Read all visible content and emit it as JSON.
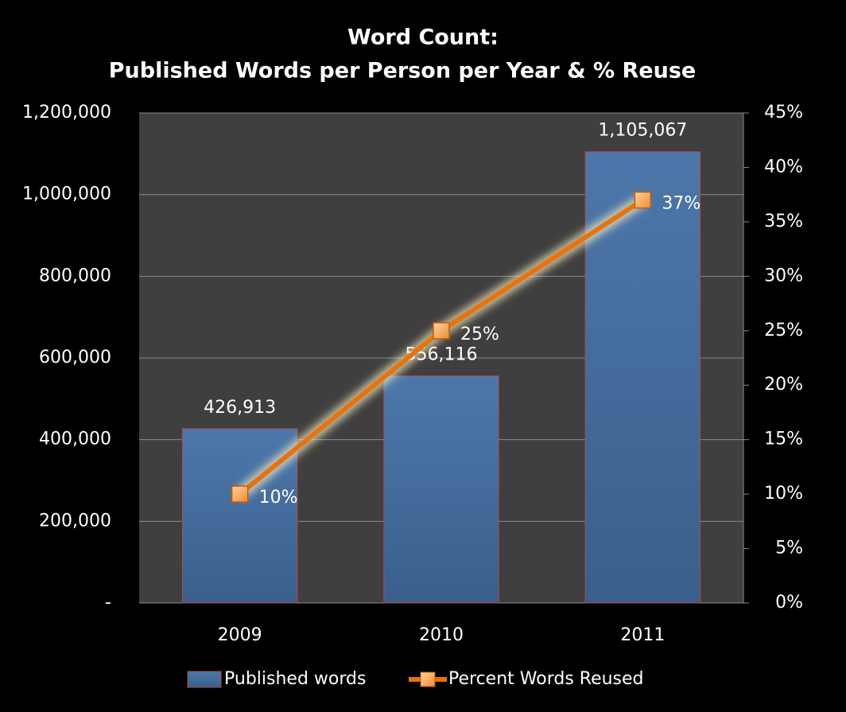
{
  "chart_data": {
    "type": "bar",
    "title": [
      "Word Count:",
      "Published Words per Person per Year & % Reuse"
    ],
    "categories": [
      "2009",
      "2010",
      "2011"
    ],
    "series": [
      {
        "name": "Published words",
        "color": "#3f6797",
        "values": [
          426913,
          556116,
          1105067
        ],
        "value_labels": [
          "426,913",
          "556,116",
          "1,105,067"
        ]
      },
      {
        "name": "Percent Words Reused",
        "type": "line",
        "axis": "y2",
        "color": "#e8720c",
        "values": [
          10,
          25,
          37
        ],
        "value_labels": [
          "10%",
          "25%",
          "37%"
        ]
      }
    ],
    "ylim": [
      0,
      1200000
    ],
    "yticks": [
      {
        "value": 0,
        "label": "-"
      },
      {
        "value": 200000,
        "label": "200,000"
      },
      {
        "value": 400000,
        "label": "400,000"
      },
      {
        "value": 600000,
        "label": "600,000"
      },
      {
        "value": 800000,
        "label": "800,000"
      },
      {
        "value": 1000000,
        "label": "1,000,000"
      },
      {
        "value": 1200000,
        "label": "1,200,000"
      }
    ],
    "y2lim": [
      0,
      45
    ],
    "y2ticks": [
      {
        "value": 0,
        "label": "0%"
      },
      {
        "value": 5,
        "label": "5%"
      },
      {
        "value": 10,
        "label": "10%"
      },
      {
        "value": 15,
        "label": "15%"
      },
      {
        "value": 20,
        "label": "20%"
      },
      {
        "value": 25,
        "label": "25%"
      },
      {
        "value": 30,
        "label": "30%"
      },
      {
        "value": 35,
        "label": "35%"
      },
      {
        "value": 40,
        "label": "40%"
      },
      {
        "value": 45,
        "label": "45%"
      }
    ],
    "grid": true,
    "legend": "bottom"
  }
}
